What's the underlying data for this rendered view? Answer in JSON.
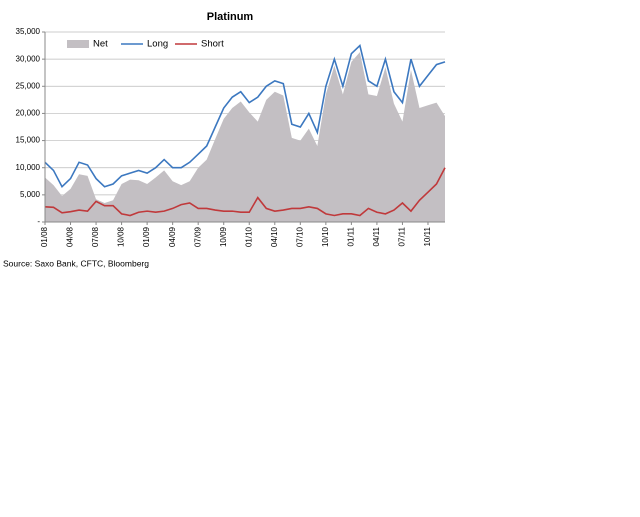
{
  "chart_data": {
    "type": "line",
    "title": "Platinum",
    "source": "Source: Saxo Bank, CFTC, Bloomberg",
    "categories": [
      "01/08",
      null,
      null,
      "04/08",
      null,
      null,
      "07/08",
      null,
      null,
      "10/08",
      null,
      null,
      "01/09",
      null,
      null,
      "04/09",
      null,
      null,
      "07/09",
      null,
      null,
      "10/09",
      null,
      null,
      "01/10",
      null,
      null,
      "04/10",
      null,
      null,
      "07/10",
      null,
      null,
      "10/10",
      null,
      null,
      "01/11",
      null,
      null,
      "04/11",
      null,
      null,
      "07/11",
      null,
      null,
      "10/11",
      null,
      null
    ],
    "series": [
      {
        "name": "Net",
        "style": "area",
        "color": "#c3bfc3",
        "values": [
          8200,
          6800,
          4800,
          6100,
          8800,
          8500,
          4200,
          3500,
          4000,
          7000,
          7800,
          7700,
          7000,
          8200,
          9500,
          7500,
          6800,
          7500,
          10000,
          11500,
          15300,
          19000,
          21000,
          22200,
          20200,
          18500,
          22500,
          24000,
          23300,
          15500,
          15000,
          17200,
          14000,
          23500,
          28800,
          23500,
          29500,
          31300,
          23500,
          23200,
          28500,
          21800,
          18500,
          28000,
          21000,
          21500,
          22000,
          19500
        ]
      },
      {
        "name": "Long",
        "style": "line",
        "color": "#3c78c0",
        "values": [
          11000,
          9500,
          6500,
          8000,
          11000,
          10500,
          8000,
          6500,
          7000,
          8500,
          9000,
          9500,
          9000,
          10000,
          11500,
          10000,
          10000,
          11000,
          12500,
          14000,
          17500,
          21000,
          23000,
          24000,
          22000,
          23000,
          25000,
          26000,
          25500,
          18000,
          17500,
          20000,
          16500,
          25000,
          30000,
          25000,
          31000,
          32500,
          26000,
          25000,
          30000,
          24000,
          22000,
          30000,
          25000,
          27000,
          29000,
          29500
        ]
      },
      {
        "name": "Short",
        "style": "line",
        "color": "#c0393b",
        "values": [
          2800,
          2700,
          1700,
          1900,
          2200,
          2000,
          3800,
          3000,
          3000,
          1500,
          1200,
          1800,
          2000,
          1800,
          2000,
          2500,
          3200,
          3500,
          2500,
          2500,
          2200,
          2000,
          2000,
          1800,
          1800,
          4500,
          2500,
          2000,
          2200,
          2500,
          2500,
          2800,
          2500,
          1500,
          1200,
          1500,
          1500,
          1200,
          2500,
          1800,
          1500,
          2200,
          3500,
          2000,
          4000,
          5500,
          7000,
          10000
        ]
      }
    ],
    "ylim": [
      0,
      35000
    ],
    "yticks": [
      {
        "value": 0,
        "label": "-"
      },
      {
        "value": 5000,
        "label": "5,000"
      },
      {
        "value": 10000,
        "label": "10,000"
      },
      {
        "value": 15000,
        "label": "15,000"
      },
      {
        "value": 20000,
        "label": "20,000"
      },
      {
        "value": 25000,
        "label": "25,000"
      },
      {
        "value": 30000,
        "label": "30,000"
      },
      {
        "value": 35000,
        "label": "35,000"
      }
    ],
    "grid": true,
    "legend": "top-left"
  }
}
